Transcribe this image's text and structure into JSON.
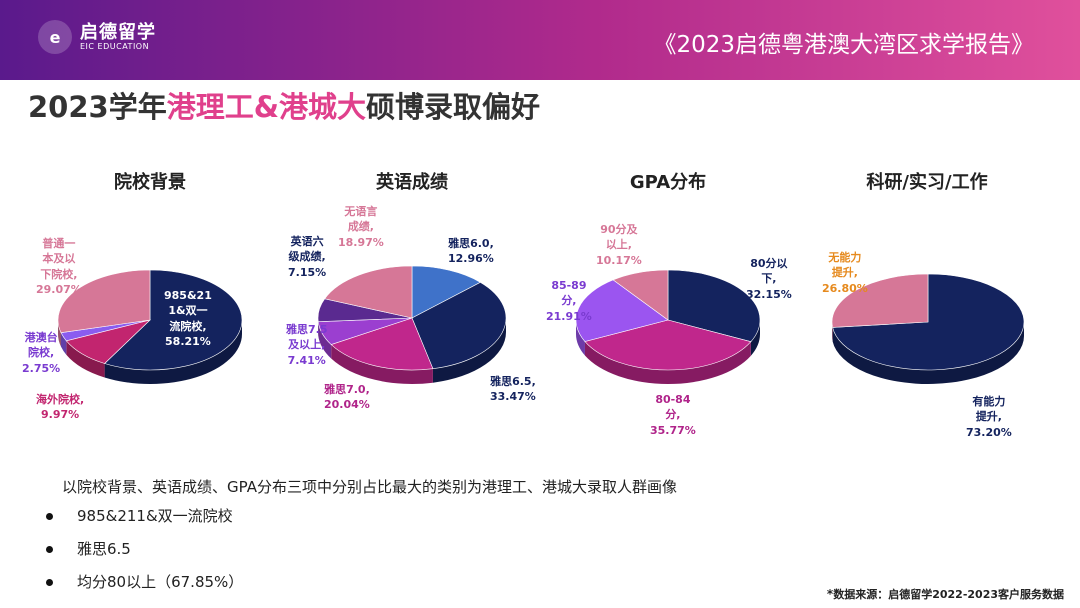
{
  "header": {
    "logo_cn": "启德留学",
    "logo_en": "EIC EDUCATION",
    "report_title": "《2023启德粤港澳大湾区求学报告》"
  },
  "page_title": {
    "part1": "2023学年",
    "highlight": "港理工&港城大",
    "part2": "硕博录取偏好"
  },
  "chart_data": [
    {
      "type": "pie",
      "title": "院校背景",
      "slices": [
        {
          "label": "985&211&双一流院校",
          "value": 58.21,
          "color": "#14235e"
        },
        {
          "label": "海外院校",
          "value": 9.97,
          "color": "#c2256f"
        },
        {
          "label": "港澳台院校",
          "value": 2.75,
          "color": "#8a5cf0"
        },
        {
          "label": "普通一本及以下院校",
          "value": 29.07,
          "color": "#d67797"
        }
      ]
    },
    {
      "type": "pie",
      "title": "英语成绩",
      "slices": [
        {
          "label": "雅思6.0",
          "value": 12.96,
          "color": "#3f72c9"
        },
        {
          "label": "雅思6.5",
          "value": 33.47,
          "color": "#14235e"
        },
        {
          "label": "雅思7.0",
          "value": 20.04,
          "color": "#c0278c"
        },
        {
          "label": "雅思7.5及以上",
          "value": 7.41,
          "color": "#9b3fd0"
        },
        {
          "label": "英语六级成绩",
          "value": 7.15,
          "color": "#5a2a90"
        },
        {
          "label": "无语言成绩",
          "value": 18.97,
          "color": "#d67797"
        }
      ]
    },
    {
      "type": "pie",
      "title": "GPA分布",
      "slices": [
        {
          "label": "80分以下",
          "value": 32.15,
          "color": "#14235e"
        },
        {
          "label": "80-84分",
          "value": 35.77,
          "color": "#c0278c"
        },
        {
          "label": "85-89分",
          "value": 21.91,
          "color": "#9b55f0"
        },
        {
          "label": "90分及以上",
          "value": 10.17,
          "color": "#d67797"
        }
      ]
    },
    {
      "type": "pie",
      "title": "科研/实习/工作",
      "slices": [
        {
          "label": "有能力提升",
          "value": 73.2,
          "color": "#14235e"
        },
        {
          "label": "无能力提升",
          "value": 26.8,
          "color": "#d67797"
        }
      ]
    }
  ],
  "labels": {
    "c1": {
      "s1": [
        "985&21",
        "1&双一",
        "流院校,",
        "58.21%"
      ],
      "s2": [
        "海外院校,",
        "9.97%"
      ],
      "s3": [
        "港澳台",
        "院校,",
        "2.75%"
      ],
      "s4": [
        "普通一",
        "本及以",
        "下院校,",
        "29.07%"
      ]
    },
    "c2": {
      "s1": [
        "雅思6.0,",
        "12.96%"
      ],
      "s2": [
        "雅思6.5,",
        "33.47%"
      ],
      "s3": [
        "雅思7.0,",
        "20.04%"
      ],
      "s4": [
        "雅思7.5",
        "及以上,",
        "7.41%"
      ],
      "s5": [
        "英语六",
        "级成绩,",
        "7.15%"
      ],
      "s6": [
        "无语言",
        "成绩,",
        "18.97%"
      ]
    },
    "c3": {
      "s1": [
        "80分以",
        "下,",
        "32.15%"
      ],
      "s2": [
        "80-84",
        "分,",
        "35.77%"
      ],
      "s3": [
        "85-89",
        "分,",
        "21.91%"
      ],
      "s4": [
        "90分及",
        "以上,",
        "10.17%"
      ]
    },
    "c4": {
      "s1": [
        "有能力",
        "提升,",
        "73.20%"
      ],
      "s2": [
        "无能力",
        "提升,",
        "26.80%"
      ]
    }
  },
  "summary": "以院校背景、英语成绩、GPA分布三项中分别占比最大的类别为港理工、港城大录取人群画像",
  "bullets": [
    "985&211&双一流院校",
    "雅思6.5",
    "均分80以上（67.85%）"
  ],
  "source": "数据来源：启德留学2022-2023客户服务数据",
  "source_mark": "*"
}
